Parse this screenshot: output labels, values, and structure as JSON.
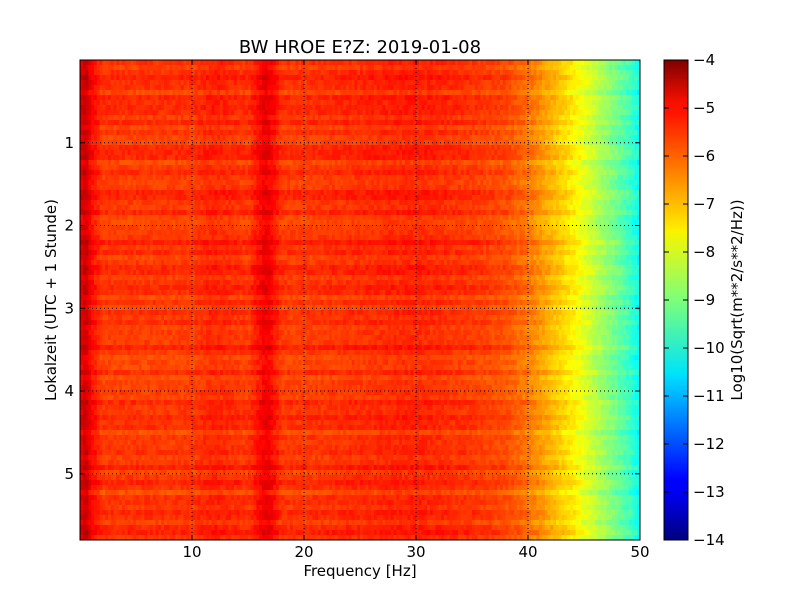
{
  "chart_data": {
    "type": "heatmap",
    "title": "BW HROE E?Z: 2019-01-08",
    "xlabel": "Frequency [Hz]",
    "ylabel": "Lokalzeit (UTC + 1 Stunde)",
    "colorbar_label": "Log10(Sqrt(m**2/s**2/Hz))",
    "xlim": [
      0,
      50
    ],
    "ylim": [
      5.8,
      0
    ],
    "x_ticks": [
      10,
      20,
      30,
      40,
      50
    ],
    "x_tick_labels": [
      "10",
      "20",
      "30",
      "40",
      "50"
    ],
    "y_ticks": [
      1,
      2,
      3,
      4,
      5
    ],
    "y_tick_labels": [
      "1",
      "2",
      "3",
      "4",
      "5"
    ],
    "colorbar_range": [
      -14,
      -4
    ],
    "colorbar_ticks": [
      -4,
      -5,
      -6,
      -7,
      -8,
      -9,
      -10,
      -11,
      -12,
      -13,
      -14
    ],
    "colorbar_tick_labels": [
      "−4",
      "−5",
      "−6",
      "−7",
      "−8",
      "−9",
      "−10",
      "−11",
      "−12",
      "−13",
      "−14"
    ],
    "colormap": "jet",
    "grid": true,
    "grid_style": "dotted",
    "frequency_profile": {
      "frequencies": [
        0,
        0.5,
        1,
        2,
        5,
        10,
        12,
        15,
        16.5,
        17,
        18,
        20,
        25,
        30,
        35,
        38,
        40,
        41,
        42,
        43,
        44,
        45,
        46,
        47,
        48,
        49,
        50
      ],
      "values": [
        -5.1,
        -4.7,
        -5.3,
        -5.8,
        -5.8,
        -5.8,
        -5.6,
        -5.8,
        -5.1,
        -5.2,
        -5.8,
        -5.8,
        -5.7,
        -5.6,
        -5.8,
        -6.0,
        -6.4,
        -6.7,
        -7.0,
        -7.3,
        -7.6,
        -8.0,
        -8.4,
        -8.8,
        -9.2,
        -9.6,
        -10.2
      ]
    },
    "time_range_hours": [
      0,
      5.8
    ]
  }
}
